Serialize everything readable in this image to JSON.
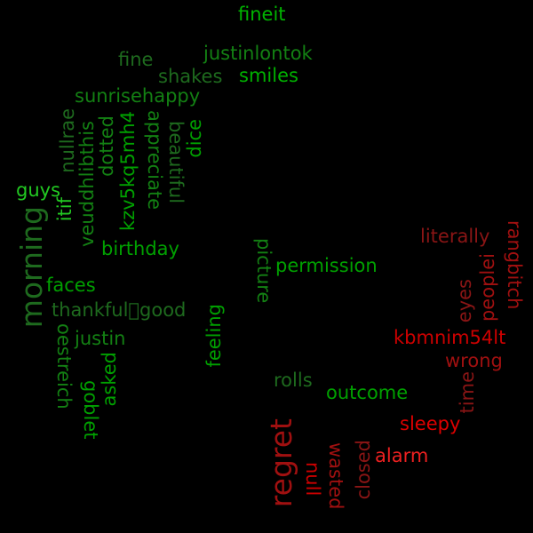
{
  "colors": {
    "background": "#000000",
    "positive_palette": [
      "#00a000",
      "#138013",
      "#1e6a1e",
      "#22c922"
    ],
    "negative_palette": [
      "#cc0000",
      "#a01010",
      "#8a1515",
      "#ee2020"
    ]
  },
  "words": {
    "fineit": "fineit",
    "fine": "fine",
    "justinlontok": "justinlontok",
    "shakes": "shakes",
    "smiles": "smiles",
    "sunrisehappy": "sunrisehappy",
    "nullrae": "nullrae",
    "veuddhlibthis": "veuddhlibthis",
    "dotted": "dotted",
    "kzv5kq5mh4": "kzv5kq5mh4",
    "appreciate": "appreciate",
    "beautiful": "beautiful",
    "dice": "dice",
    "guys": "guys",
    "itif": "itif",
    "morning": "morning",
    "birthday": "birthday",
    "faces": "faces",
    "thankfulgood": "thankful\u0000good",
    "justin": "justin",
    "oestreich": "oestreich",
    "goblet": "goblet",
    "asked": "asked",
    "feeling": "feeling",
    "picture": "picture",
    "permission": "permission",
    "rolls": "rolls",
    "outcome": "outcome",
    "literally": "literally",
    "rangbitch": "rangbitch",
    "peoplei": "peoplei",
    "eyes": "eyes",
    "kbmnim54lt": "kbmnim54lt",
    "wrong": "wrong",
    "time": "time",
    "sleepy": "sleepy",
    "regret": "regret",
    "alarm": "alarm",
    "null": "null",
    "wasted": "wasted",
    "closed": "closed"
  }
}
